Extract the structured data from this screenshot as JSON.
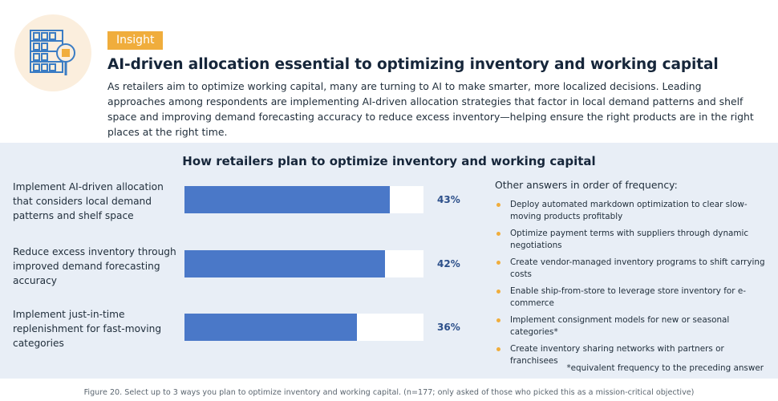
{
  "insight": {
    "badge": "Insight",
    "icon": "warehouse-inventory-search-icon",
    "headline": "AI-driven allocation essential to optimizing inventory and working capital",
    "intro": "As retailers aim to optimize working capital, many are turning to AI to make smarter, more localized decisions. Leading approaches among respondents are implementing AI-driven allocation strategies that factor in local demand patterns and shelf space and improving demand forecasting accuracy to reduce excess inventory—helping ensure the right products are in the right places at the right time."
  },
  "colors": {
    "bar": "#4a78c8",
    "accent": "#f0ad3c",
    "panel": "#e8eef6"
  },
  "chart_data": {
    "type": "bar",
    "orientation": "horizontal",
    "title": "How retailers plan to optimize inventory and working capital",
    "categories": [
      "Implement AI-driven allocation that considers local demand patterns and shelf space",
      "Reduce excess inventory through improved demand forecasting accuracy",
      "Implement just-in-time replenishment for fast-moving categories"
    ],
    "values": [
      43,
      42,
      36
    ],
    "value_labels": [
      "43%",
      "42%",
      "36%"
    ],
    "xlim": [
      0,
      50
    ],
    "grid": false
  },
  "others": {
    "title": "Other answers in order of frequency:",
    "items": [
      "Deploy automated markdown optimization to clear slow-moving products profitably",
      "Optimize payment terms with suppliers through dynamic negotiations",
      "Create vendor-managed inventory programs to shift carrying costs",
      "Enable ship-from-store to leverage store inventory for e-commerce",
      "Implement consignment models for new or seasonal categories*",
      "Create inventory sharing networks with partners or franchisees"
    ],
    "footnote": "*equivalent frequency to the preceding answer"
  },
  "caption": "Figure 20. Select up to 3 ways you plan to optimize inventory and working capital. (n=177; only asked of those who picked this as a mission-critical objective)"
}
